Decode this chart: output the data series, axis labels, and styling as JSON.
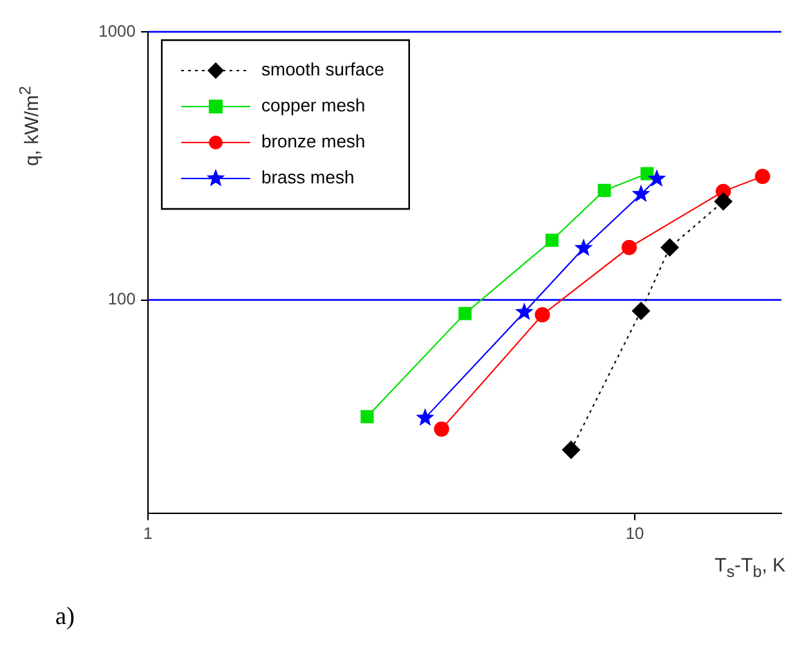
{
  "chart_data": {
    "type": "line",
    "xlabel": "T$_{s}$-T$_{b}$, K",
    "ylabel": "q, kW/m$^{2}$",
    "log": "xy",
    "xlim": [
      1,
      20
    ],
    "ylim": [
      16,
      1000
    ],
    "xticks": [
      1,
      10
    ],
    "yticks": [
      100,
      1000
    ],
    "legend": "top left",
    "ref_lines": [
      {
        "axis": "y",
        "value": 100,
        "color": "#0000ff"
      },
      {
        "axis": "y",
        "value": 1000,
        "color": "#0000ff"
      }
    ],
    "series": [
      {
        "name": "smooth surface",
        "color": "#000000",
        "marker": "diamond",
        "line_style": "dotted",
        "x": [
          7.4,
          10.3,
          11.8,
          15.2
        ],
        "values": [
          27.6,
          91,
          157,
          233
        ]
      },
      {
        "name": "copper mesh",
        "color": "#00e000",
        "marker": "square",
        "line_style": "solid",
        "x": [
          2.82,
          4.48,
          6.76,
          8.66,
          10.6
        ],
        "values": [
          36.7,
          89,
          167,
          256,
          296
        ]
      },
      {
        "name": "bronze mesh",
        "color": "#ff0000",
        "marker": "circle",
        "line_style": "solid",
        "x": [
          4.01,
          6.46,
          9.74,
          15.2,
          18.3
        ],
        "values": [
          33,
          88,
          157,
          254,
          289
        ]
      },
      {
        "name": "brass mesh",
        "color": "#0000ff",
        "marker": "star",
        "line_style": "solid",
        "x": [
          3.71,
          5.93,
          7.85,
          10.3,
          11.1
        ],
        "values": [
          36.3,
          90,
          156,
          248,
          283
        ]
      }
    ],
    "annotations": [
      "a)"
    ]
  }
}
